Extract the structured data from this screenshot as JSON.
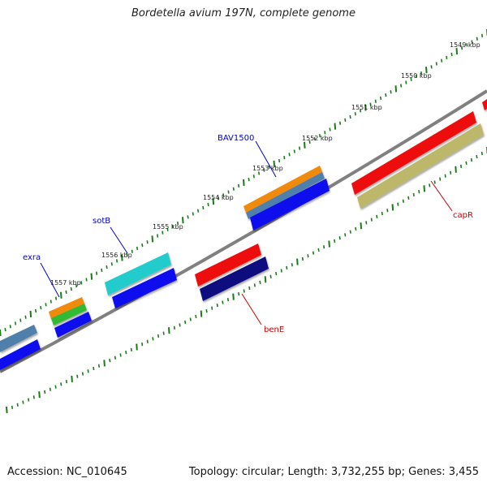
{
  "title": "Bordetella avium 197N, complete genome",
  "footer": {
    "accession": "Accession: NC_010645",
    "topology": "Topology: circular; Length: 3,732,255 bp; Genes: 3,455"
  },
  "colors": {
    "backbone": "#808080",
    "tick": "#1a7a1a",
    "gene_label_blue": "#0000cc",
    "gene_label_red": "#cc0000",
    "cds_blue": "#1010ee",
    "cds_red": "#ee1111",
    "cds_navy": "#0a0a80",
    "cds_steel": "#4f7fab",
    "cds_orange": "#f08a10",
    "cds_green": "#33bb33",
    "cds_cyan": "#22cccc",
    "cds_khaki": "#bdb76b"
  },
  "kbp_labels": [
    "1549 kbp",
    "1550 kbp",
    "1551 kbp",
    "1552 kbp",
    "1553 kbp",
    "1554 kbp",
    "1555 kbp",
    "1556 kbp",
    "1557 kbp"
  ],
  "gene_labels": {
    "bav1500": "BAV1500",
    "sotb": "sotB",
    "exra": "exra",
    "bene": "benE",
    "capr": "capR"
  }
}
